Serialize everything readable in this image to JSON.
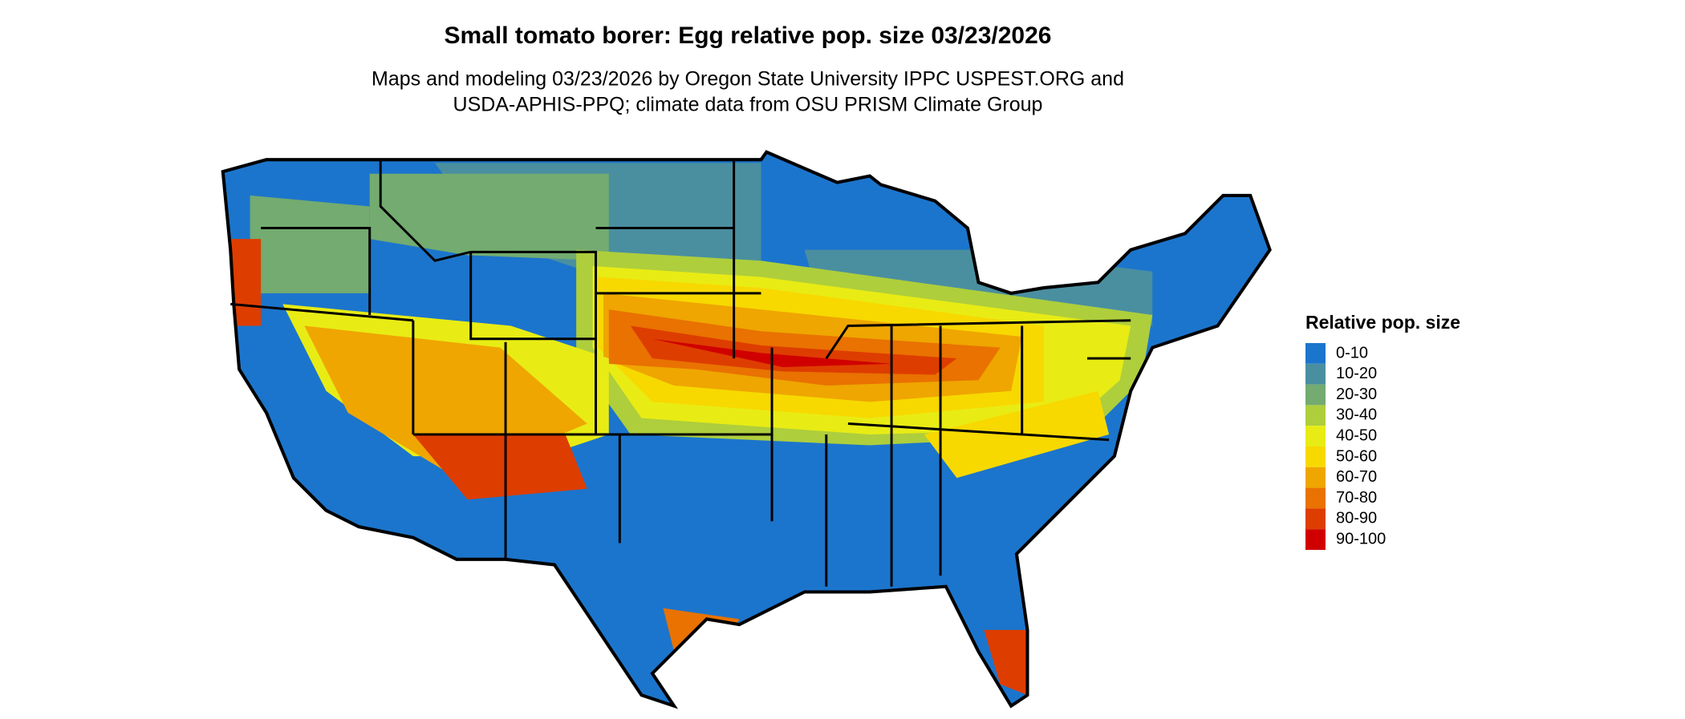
{
  "title": "Small tomato borer: Egg relative pop. size 03/23/2026",
  "subtitle": [
    "Maps and modeling 03/23/2026 by Oregon State University IPPC USPEST.ORG and",
    "USDA-APHIS-PPQ; climate data from OSU PRISM Climate Group"
  ],
  "legend": {
    "title": "Relative pop. size",
    "items": [
      {
        "label": "0-10",
        "color": "#1c75cc"
      },
      {
        "label": "10-20",
        "color": "#4a8fa0"
      },
      {
        "label": "20-30",
        "color": "#73ab70"
      },
      {
        "label": "30-40",
        "color": "#aece3c"
      },
      {
        "label": "40-50",
        "color": "#e8ec14"
      },
      {
        "label": "50-60",
        "color": "#f7d900"
      },
      {
        "label": "60-70",
        "color": "#efa600"
      },
      {
        "label": "70-80",
        "color": "#e97200"
      },
      {
        "label": "80-90",
        "color": "#de3d00"
      },
      {
        "label": "90-100",
        "color": "#d00000"
      }
    ]
  }
}
